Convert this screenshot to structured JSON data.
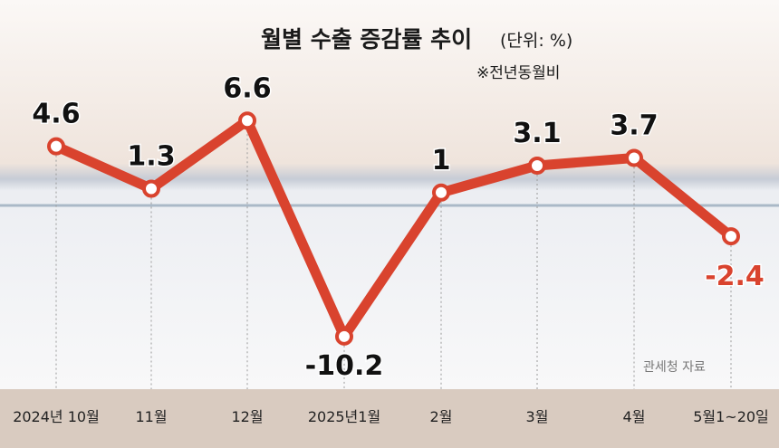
{
  "chart_data": {
    "type": "line",
    "title": "월별 수출 증감률 추이",
    "unit_note": "(단위: %)",
    "subnote": "※전년동월비",
    "source": "관세청 자료",
    "categories": [
      "2024년 10월",
      "11월",
      "12월",
      "2025년1월",
      "2월",
      "3월",
      "4월",
      "5월1~20일"
    ],
    "values": [
      4.6,
      1.3,
      6.6,
      -10.2,
      1,
      3.1,
      3.7,
      -2.4
    ],
    "value_labels": [
      "4.6",
      "1.3",
      "6.6",
      "-10.2",
      "1",
      "3.1",
      "3.7",
      "-2.4"
    ],
    "ylim": [
      -11,
      8
    ],
    "grid": false,
    "colors": {
      "line": "#d9432e",
      "positive_label": "#111111",
      "negative_label": "#111111",
      "highlight_label": "#d9432e",
      "marker_fill": "#ffffff",
      "baseline": "#8fa3b5",
      "axis_band": "#d9cbc0"
    }
  }
}
